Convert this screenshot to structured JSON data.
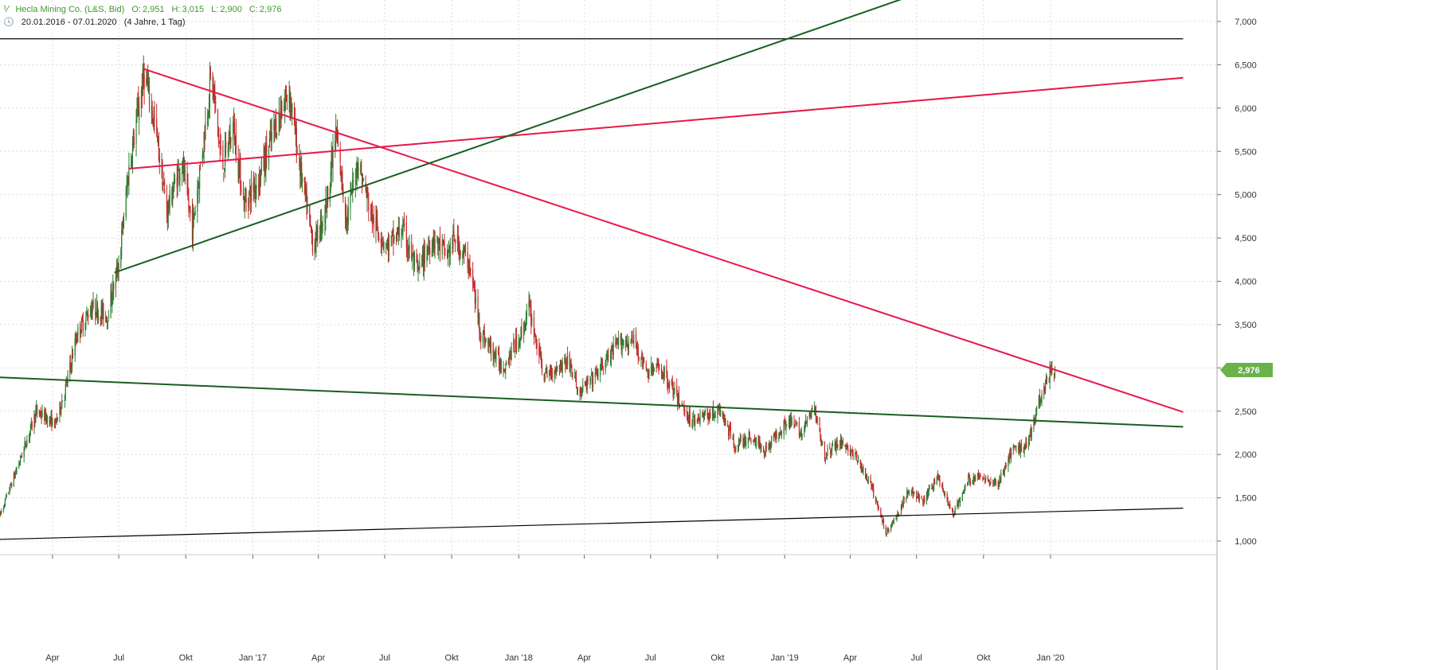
{
  "header": {
    "instrument": "Hecla Mining Co. (L&S, Bid)",
    "open_label": "O:",
    "open": "2,951",
    "high_label": "H:",
    "high": "3,015",
    "low_label": "L:",
    "low": "2,900",
    "close_label": "C:",
    "close": "2,976",
    "date_range": "20.01.2016 - 07.01.2020",
    "period": "(4 Jahre, 1 Tag)"
  },
  "colors": {
    "up_candle": "#2e7d32",
    "down_candle": "#c62828",
    "red_trendline": "#e8174a",
    "green_trendline": "#1b5e20",
    "black_line": "#000000",
    "grid": "#dddddd",
    "price_tag": "#6ab24a"
  },
  "chart_data": {
    "type": "candlestick",
    "x_start": "2016-01-20",
    "x_end": "2020-01-07",
    "ylim": [
      0.9,
      7.3
    ],
    "y_ticks": [
      "1,000",
      "1,500",
      "2,000",
      "2,500",
      "3,000",
      "3,500",
      "4,000",
      "4,500",
      "5,000",
      "5,500",
      "6,000",
      "6,500",
      "7,000"
    ],
    "x_ticks": [
      {
        "label": "Apr",
        "date": "2016-04-01"
      },
      {
        "label": "Jul",
        "date": "2016-07-01"
      },
      {
        "label": "Okt",
        "date": "2016-10-01"
      },
      {
        "label": "Jan '17",
        "date": "2017-01-01"
      },
      {
        "label": "Apr",
        "date": "2017-04-01"
      },
      {
        "label": "Jul",
        "date": "2017-07-01"
      },
      {
        "label": "Okt",
        "date": "2017-10-01"
      },
      {
        "label": "Jan '18",
        "date": "2018-01-01"
      },
      {
        "label": "Apr",
        "date": "2018-04-01"
      },
      {
        "label": "Jul",
        "date": "2018-07-01"
      },
      {
        "label": "Okt",
        "date": "2018-10-01"
      },
      {
        "label": "Jan '19",
        "date": "2019-01-01"
      },
      {
        "label": "Apr",
        "date": "2019-04-01"
      },
      {
        "label": "Jul",
        "date": "2019-07-01"
      },
      {
        "label": "Okt",
        "date": "2019-10-01"
      },
      {
        "label": "Jan '20",
        "date": "2020-01-01"
      }
    ],
    "price_path": [
      [
        "2016-01-20",
        1.3
      ],
      [
        "2016-02-15",
        1.9
      ],
      [
        "2016-03-10",
        2.5
      ],
      [
        "2016-04-05",
        2.35
      ],
      [
        "2016-04-20",
        2.8
      ],
      [
        "2016-05-05",
        3.4
      ],
      [
        "2016-05-25",
        3.7
      ],
      [
        "2016-06-15",
        3.6
      ],
      [
        "2016-07-01",
        4.2
      ],
      [
        "2016-07-15",
        5.3
      ],
      [
        "2016-08-05",
        6.4
      ],
      [
        "2016-08-20",
        5.8
      ],
      [
        "2016-09-05",
        4.8
      ],
      [
        "2016-09-25",
        5.4
      ],
      [
        "2016-10-10",
        4.6
      ],
      [
        "2016-10-25",
        5.6
      ],
      [
        "2016-11-05",
        6.4
      ],
      [
        "2016-11-20",
        5.3
      ],
      [
        "2016-12-05",
        5.8
      ],
      [
        "2016-12-20",
        4.9
      ],
      [
        "2017-01-10",
        5.2
      ],
      [
        "2017-02-01",
        5.8
      ],
      [
        "2017-02-20",
        6.2
      ],
      [
        "2017-03-05",
        5.4
      ],
      [
        "2017-03-25",
        4.4
      ],
      [
        "2017-04-10",
        4.8
      ],
      [
        "2017-04-25",
        5.7
      ],
      [
        "2017-05-10",
        4.7
      ],
      [
        "2017-05-25",
        5.4
      ],
      [
        "2017-06-15",
        4.7
      ],
      [
        "2017-07-05",
        4.4
      ],
      [
        "2017-07-25",
        4.6
      ],
      [
        "2017-08-15",
        4.1
      ],
      [
        "2017-09-05",
        4.5
      ],
      [
        "2017-09-25",
        4.3
      ],
      [
        "2017-10-05",
        4.5
      ],
      [
        "2017-10-25",
        4.2
      ],
      [
        "2017-11-10",
        3.4
      ],
      [
        "2017-12-10",
        3.0
      ],
      [
        "2018-01-05",
        3.4
      ],
      [
        "2018-01-15",
        3.7
      ],
      [
        "2018-02-05",
        2.9
      ],
      [
        "2018-03-10",
        3.1
      ],
      [
        "2018-03-25",
        2.7
      ],
      [
        "2018-04-20",
        2.95
      ],
      [
        "2018-05-20",
        3.3
      ],
      [
        "2018-06-10",
        3.3
      ],
      [
        "2018-06-25",
        2.95
      ],
      [
        "2018-07-15",
        3.0
      ],
      [
        "2018-08-10",
        2.6
      ],
      [
        "2018-08-25",
        2.4
      ],
      [
        "2018-09-15",
        2.45
      ],
      [
        "2018-10-05",
        2.5
      ],
      [
        "2018-10-25",
        2.1
      ],
      [
        "2018-11-15",
        2.2
      ],
      [
        "2018-12-05",
        2.05
      ],
      [
        "2019-01-05",
        2.4
      ],
      [
        "2019-01-25",
        2.25
      ],
      [
        "2019-02-10",
        2.55
      ],
      [
        "2019-02-25",
        2.0
      ],
      [
        "2019-03-20",
        2.15
      ],
      [
        "2019-04-10",
        1.95
      ],
      [
        "2019-05-01",
        1.6
      ],
      [
        "2019-05-20",
        1.1
      ],
      [
        "2019-06-05",
        1.3
      ],
      [
        "2019-06-20",
        1.6
      ],
      [
        "2019-07-10",
        1.45
      ],
      [
        "2019-07-30",
        1.75
      ],
      [
        "2019-08-20",
        1.3
      ],
      [
        "2019-09-10",
        1.7
      ],
      [
        "2019-09-30",
        1.75
      ],
      [
        "2019-10-20",
        1.65
      ],
      [
        "2019-11-10",
        2.05
      ],
      [
        "2019-11-30",
        2.1
      ],
      [
        "2019-12-15",
        2.6
      ],
      [
        "2019-12-31",
        2.95
      ],
      [
        "2020-01-07",
        2.976
      ]
    ],
    "lines": [
      {
        "name": "horizontal-resistance",
        "color": "black",
        "from": [
          "2016-01-20",
          6.8
        ],
        "to": [
          "2020-07-01",
          6.8
        ]
      },
      {
        "name": "rising-support",
        "color": "black",
        "from": [
          "2016-01-20",
          1.02
        ],
        "to": [
          "2020-07-01",
          1.38
        ]
      },
      {
        "name": "falling-resistance",
        "color": "red",
        "from": [
          "2016-08-05",
          6.45
        ],
        "to": [
          "2020-07-01",
          2.49
        ]
      },
      {
        "name": "rising-red",
        "color": "red",
        "from": [
          "2016-07-15",
          5.3
        ],
        "to": [
          "2020-07-01",
          6.35
        ]
      },
      {
        "name": "green-uptrend",
        "color": "green",
        "from": [
          "2016-06-25",
          4.1
        ],
        "to": [
          "2019-06-25",
          7.3
        ]
      },
      {
        "name": "green-support",
        "color": "green",
        "from": [
          "2016-01-20",
          2.89
        ],
        "to": [
          "2020-07-01",
          2.32
        ]
      }
    ],
    "last_price": 2.976,
    "last_price_label": "2,976"
  }
}
